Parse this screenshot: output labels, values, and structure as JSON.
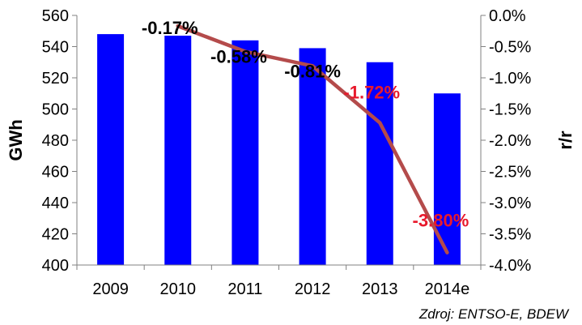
{
  "chart_data": {
    "type": "bar",
    "categories": [
      "2009",
      "2010",
      "2011",
      "2012",
      "2013",
      "2014e"
    ],
    "series": [
      {
        "type": "bar",
        "axis": "left",
        "color": "#0000ff",
        "values": [
          548,
          547,
          544,
          539,
          530,
          510
        ]
      },
      {
        "type": "line",
        "axis": "right",
        "color": "#b44b4b",
        "values": [
          null,
          -0.17,
          -0.58,
          -0.81,
          -1.72,
          -3.8
        ],
        "labels": [
          "",
          "-0.17%",
          "-0.58%",
          "-0.81%",
          "-1.72%",
          "-3.80%"
        ],
        "label_colors": [
          "#000000",
          "#000000",
          "#000000",
          "#000000",
          "#e8192c",
          "#e8192c"
        ]
      }
    ],
    "ylabel": "GWh",
    "ylim": [
      400,
      560
    ],
    "yticks": [
      "400",
      "420",
      "440",
      "460",
      "480",
      "500",
      "520",
      "540",
      "560"
    ],
    "y2label": "r/r",
    "y2lim": [
      -4.0,
      0.0
    ],
    "y2ticks": [
      "-4.0%",
      "-3.5%",
      "-3.0%",
      "-2.5%",
      "-2.0%",
      "-1.5%",
      "-1.0%",
      "-0.5%",
      "0.0%"
    ],
    "grid": false,
    "source": "Zdroj: ENTSO-E, BDEW"
  }
}
